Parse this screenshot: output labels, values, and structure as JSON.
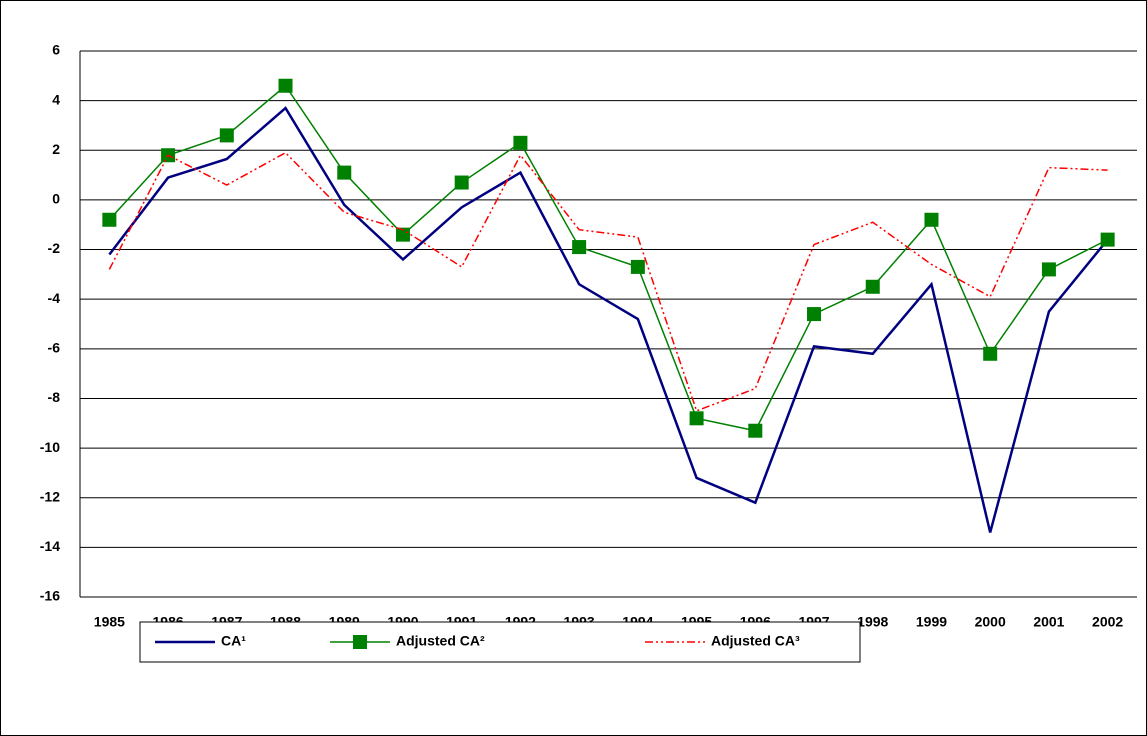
{
  "chart_data": {
    "type": "line",
    "categories": [
      "1985",
      "1986",
      "1987",
      "1988",
      "1989",
      "1990",
      "1991",
      "1992",
      "1993",
      "1994",
      "1995",
      "1996",
      "1997",
      "1998",
      "1999",
      "2000",
      "2001",
      "2002"
    ],
    "series": [
      {
        "name": "CA¹",
        "color": "#000080",
        "values": [
          -2.2,
          0.9,
          1.65,
          3.7,
          -0.2,
          -2.4,
          -0.3,
          1.1,
          -3.4,
          -4.8,
          -11.2,
          -12.2,
          -5.9,
          -6.2,
          -3.4,
          -13.4,
          -4.5,
          -1.6
        ]
      },
      {
        "name": "Adjusted CA²",
        "color": "#008000",
        "marker": "square",
        "values": [
          -0.8,
          1.8,
          2.6,
          4.6,
          1.1,
          -1.4,
          0.7,
          2.3,
          -1.9,
          -2.7,
          -8.8,
          -9.3,
          -4.6,
          -3.5,
          -0.8,
          -6.2,
          -2.8,
          -1.6
        ]
      },
      {
        "name": "Adjusted CA³",
        "color": "#ff0000",
        "dash": "8,3,2,3,2,3",
        "values": [
          -2.8,
          1.8,
          0.6,
          1.9,
          -0.5,
          -1.2,
          -2.7,
          1.8,
          -1.2,
          -1.5,
          -8.5,
          -7.6,
          -1.8,
          -0.9,
          -2.6,
          -3.9,
          1.3,
          1.2
        ]
      }
    ],
    "ylim": [
      -16,
      6
    ],
    "yticks": [
      -16,
      -14,
      -12,
      -10,
      -8,
      -6,
      -4,
      -2,
      0,
      2,
      4,
      6
    ],
    "grid": true,
    "legend": "bottom"
  }
}
